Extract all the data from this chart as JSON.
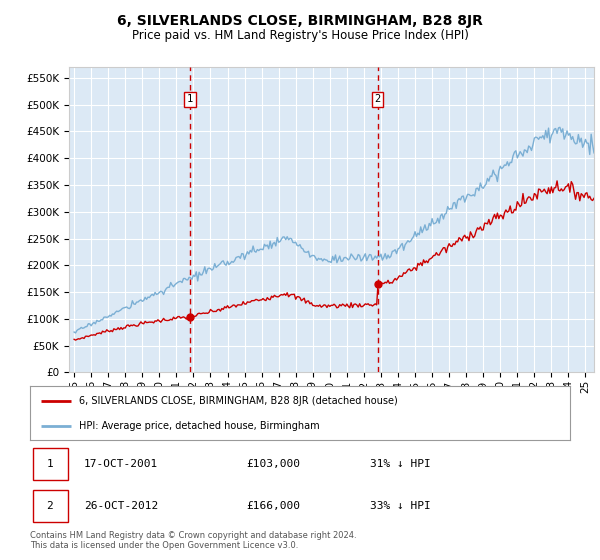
{
  "title": "6, SILVERLANDS CLOSE, BIRMINGHAM, B28 8JR",
  "subtitle": "Price paid vs. HM Land Registry's House Price Index (HPI)",
  "ylim": [
    0,
    570000
  ],
  "xlim_start": 1994.7,
  "xlim_end": 2025.5,
  "background_color": "#dce9f5",
  "grid_color": "#ffffff",
  "sale1_date": 2001.8,
  "sale1_price": 103000,
  "sale2_date": 2012.8,
  "sale2_price": 166000,
  "legend_line1": "6, SILVERLANDS CLOSE, BIRMINGHAM, B28 8JR (detached house)",
  "legend_line2": "HPI: Average price, detached house, Birmingham",
  "footer": "Contains HM Land Registry data © Crown copyright and database right 2024.\nThis data is licensed under the Open Government Licence v3.0.",
  "hpi_color": "#7bafd4",
  "property_color": "#cc0000"
}
